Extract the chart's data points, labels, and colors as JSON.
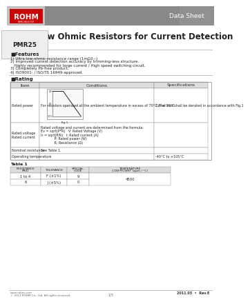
{
  "title_main": "Ultra-Low Ohmic Resistors for Current Detection",
  "model": "PMR25",
  "header_label": "Data Sheet",
  "rohm_text": "ROHM",
  "features_title": "■Features",
  "features": [
    "1) Ultra-low-ohmic resistance range (1mΩ3~)",
    "2) Improved current detection accuracy by trimming-less structure.",
    "   Highly recommended for large current / High speed switching circuit.",
    "3) Completely Pb-free product.",
    "4) ISO9001- / ISO/TS 16949-approved."
  ],
  "rating_title": "■Rating",
  "table_headers": [
    "Item",
    "Conditions",
    "Specifications"
  ],
  "rows": [
    [
      "Rated power",
      "For resistors operated at the ambient temperature in excess of 70°C, the load shall be derated in accordance with Fig.1",
      "1W at 70°C"
    ],
    [
      "Rated voltage\nRated current",
      "Rated voltage and current are determined from the formula:\nEv = sqrt(P*R)   V: Rated Voltage (V)\nIr = sqrt(P/R)   I: Rated current (A)\n             P: Rated power (W)\n             R: Resistance (Ω)",
      ""
    ],
    [
      "Nominal resistance",
      "See Table 1.",
      ""
    ],
    [
      "Operating temperature",
      "",
      "-40°C to +105°C"
    ]
  ],
  "table1_title": "Table 1",
  "table1_headers": [
    "RESISTANCE\nPRIO",
    "TOLERANCE",
    "SPECIAL\nCODE",
    "TEMPERATURE\nCOEFFICIENT (ppm / °C)"
  ],
  "table1_rows": [
    [
      "1 to 4",
      "F (±1%)",
      "9",
      ""
    ],
    [
      "6",
      "J (±5%)",
      "0",
      "4500"
    ]
  ],
  "footer_left1": "www.rohm.com",
  "footer_left2": "© 2011 ROHM Co., Ltd. All rights reserved.",
  "footer_center": "1/3",
  "footer_right": "2011.03  •  Rev.E",
  "bg_color": "#ffffff",
  "rohm_bg": "#cc0000",
  "text_color": "#222222",
  "light_gray": "#dddddd",
  "mid_gray": "#aaaaaa"
}
